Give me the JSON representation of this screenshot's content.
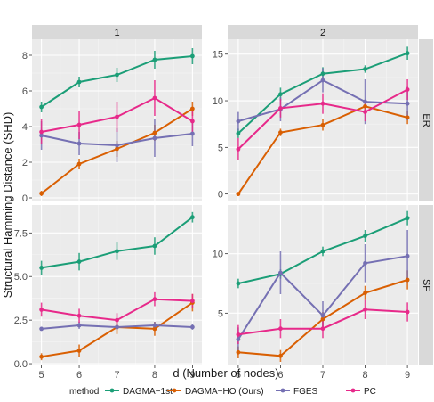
{
  "chart_data": {
    "type": "line",
    "ylabel": "Structural Hamming Distance (SHD)",
    "xlabel": "d (Number of nodes)",
    "x": [
      5,
      6,
      7,
      8,
      9
    ],
    "x_tick_labels": [
      "5",
      "6",
      "7",
      "8",
      "9"
    ],
    "col_strips": [
      "1",
      "2"
    ],
    "row_strips": [
      "ER",
      "SF"
    ],
    "legend_title": "method",
    "legend_position": "bottom",
    "grid": true,
    "series_meta": [
      {
        "name": "DAGMA−1st",
        "color": "#1b9e77"
      },
      {
        "name": "DAGMA−HO (Ours)",
        "color": "#d95f02"
      },
      {
        "name": "FGES",
        "color": "#7570b3"
      },
      {
        "name": "PC",
        "color": "#e7298a"
      }
    ],
    "panels": [
      {
        "col": "1",
        "row": "ER",
        "ylim": [
          -0.2,
          8.9
        ],
        "y_ticks": [
          0,
          2,
          4,
          6,
          8
        ],
        "y_tick_labels": [
          "0",
          "2",
          "4",
          "6",
          "8"
        ],
        "series": [
          {
            "name": "DAGMA−1st",
            "y": [
              5.1,
              6.5,
              6.9,
              7.75,
              7.95
            ],
            "lo": [
              4.8,
              6.2,
              6.5,
              7.25,
              7.5
            ],
            "hi": [
              5.4,
              6.8,
              7.3,
              8.25,
              8.4
            ]
          },
          {
            "name": "DAGMA−HO (Ours)",
            "y": [
              0.25,
              1.9,
              2.75,
              3.65,
              5.0
            ],
            "lo": [
              0.1,
              1.6,
              2.3,
              3.2,
              4.6
            ],
            "hi": [
              0.4,
              2.2,
              3.2,
              4.1,
              5.4
            ]
          },
          {
            "name": "FGES",
            "y": [
              3.5,
              3.05,
              2.95,
              3.35,
              3.6
            ],
            "lo": [
              2.7,
              2.4,
              2.0,
              2.3,
              2.9
            ],
            "hi": [
              4.3,
              3.7,
              3.9,
              4.4,
              4.3
            ]
          },
          {
            "name": "PC",
            "y": [
              3.7,
              4.1,
              4.55,
              5.6,
              4.3
            ],
            "lo": [
              3.0,
              3.3,
              3.7,
              4.6,
              3.7
            ],
            "hi": [
              4.4,
              4.9,
              5.4,
              6.6,
              4.9
            ]
          }
        ]
      },
      {
        "col": "2",
        "row": "ER",
        "ylim": [
          -0.8,
          16.6
        ],
        "y_ticks": [
          0,
          5,
          10,
          15
        ],
        "y_tick_labels": [
          "0",
          "5",
          "10",
          "15"
        ],
        "series": [
          {
            "name": "DAGMA−1st",
            "y": [
              6.5,
              10.7,
              12.9,
              13.4,
              15.1
            ],
            "lo": [
              6.0,
              10.0,
              12.2,
              13.0,
              14.4
            ],
            "hi": [
              7.0,
              11.4,
              13.6,
              13.8,
              15.8
            ]
          },
          {
            "name": "DAGMA−HO (Ours)",
            "y": [
              0.0,
              6.6,
              7.4,
              9.4,
              8.2
            ],
            "lo": [
              0.0,
              6.2,
              6.8,
              8.8,
              7.5
            ],
            "hi": [
              0.0,
              7.0,
              8.0,
              10.0,
              8.9
            ]
          },
          {
            "name": "FGES",
            "y": [
              7.8,
              9.1,
              12.2,
              9.9,
              9.7
            ],
            "lo": [
              6.8,
              7.8,
              10.9,
              7.5,
              7.9
            ],
            "hi": [
              8.8,
              10.4,
              13.5,
              12.3,
              11.5
            ]
          },
          {
            "name": "PC",
            "y": [
              4.8,
              9.2,
              9.7,
              8.8,
              11.2
            ],
            "lo": [
              3.6,
              8.2,
              8.6,
              7.8,
              10.1
            ],
            "hi": [
              6.0,
              10.2,
              10.8,
              9.8,
              12.3
            ]
          }
        ]
      },
      {
        "col": "1",
        "row": "SF",
        "ylim": [
          -0.1,
          9.1
        ],
        "y_ticks": [
          0,
          2.5,
          5,
          7.5
        ],
        "y_tick_labels": [
          "0.0",
          "2.5",
          "5.0",
          "7.5"
        ],
        "series": [
          {
            "name": "DAGMA−1st",
            "y": [
              5.5,
              5.85,
              6.45,
              6.75,
              8.4
            ],
            "lo": [
              5.1,
              5.35,
              5.95,
              6.25,
              8.1
            ],
            "hi": [
              5.9,
              6.35,
              6.95,
              7.25,
              8.7
            ]
          },
          {
            "name": "DAGMA−HO (Ours)",
            "y": [
              0.4,
              0.75,
              2.1,
              2.0,
              3.5
            ],
            "lo": [
              0.2,
              0.4,
              1.7,
              1.6,
              3.0
            ],
            "hi": [
              0.6,
              1.1,
              2.5,
              2.4,
              4.0
            ]
          },
          {
            "name": "FGES",
            "y": [
              2.0,
              2.2,
              2.1,
              2.2,
              2.1
            ],
            "lo": [
              1.9,
              2.0,
              1.95,
              2.0,
              1.95
            ],
            "hi": [
              2.1,
              2.4,
              2.25,
              2.4,
              2.25
            ]
          },
          {
            "name": "PC",
            "y": [
              3.1,
              2.75,
              2.5,
              3.7,
              3.6
            ],
            "lo": [
              2.7,
              2.35,
              2.1,
              3.3,
              3.2
            ],
            "hi": [
              3.5,
              3.15,
              2.9,
              4.1,
              4.0
            ]
          }
        ]
      },
      {
        "col": "2",
        "row": "SF",
        "ylim": [
          0.6,
          14.1
        ],
        "y_ticks": [
          5,
          10
        ],
        "y_tick_labels": [
          "5",
          "10"
        ],
        "series": [
          {
            "name": "DAGMA−1st",
            "y": [
              7.5,
              8.3,
              10.2,
              11.5,
              13.0
            ],
            "lo": [
              7.1,
              7.9,
              9.8,
              11.0,
              12.4
            ],
            "hi": [
              7.9,
              8.7,
              10.6,
              12.0,
              13.6
            ]
          },
          {
            "name": "DAGMA−HO (Ours)",
            "y": [
              1.7,
              1.4,
              4.5,
              6.7,
              7.8
            ],
            "lo": [
              1.2,
              0.9,
              3.9,
              6.1,
              7.0
            ],
            "hi": [
              2.2,
              1.9,
              5.1,
              7.3,
              8.6
            ]
          },
          {
            "name": "FGES",
            "y": [
              2.8,
              8.4,
              4.8,
              9.2,
              9.8
            ],
            "lo": [
              1.8,
              6.6,
              3.6,
              7.6,
              7.6
            ],
            "hi": [
              3.8,
              10.2,
              6.0,
              10.8,
              12.0
            ]
          },
          {
            "name": "PC",
            "y": [
              3.2,
              3.7,
              3.7,
              5.3,
              5.1
            ],
            "lo": [
              2.4,
              2.9,
              2.9,
              4.5,
              4.3
            ],
            "hi": [
              4.0,
              4.5,
              4.5,
              6.1,
              5.9
            ]
          }
        ]
      }
    ]
  }
}
